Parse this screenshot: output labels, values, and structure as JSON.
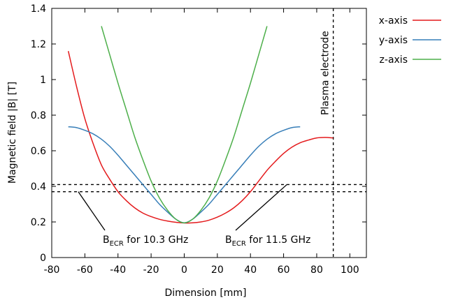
{
  "chart_data": {
    "type": "line",
    "xlabel": "Dimension [mm]",
    "ylabel": "Magnetic field |B| [T]",
    "xlim": [
      -80,
      110
    ],
    "ylim": [
      0,
      1.4
    ],
    "xticks": [
      "-80",
      "-60",
      "-40",
      "-20",
      "0",
      "20",
      "40",
      "60",
      "80",
      "100"
    ],
    "xtick_values": [
      -80,
      -60,
      -40,
      -20,
      0,
      20,
      40,
      60,
      80,
      100
    ],
    "yticks": [
      "0",
      "0.2",
      "0.4",
      "0.6",
      "0.8",
      "1",
      "1.2",
      "1.4"
    ],
    "ytick_values": [
      0,
      0.2,
      0.4,
      0.6,
      0.8,
      1.0,
      1.2,
      1.4
    ],
    "grid": false,
    "legend_position": "top-right outside",
    "series": [
      {
        "name": "x-axis",
        "color": "#e41a1c",
        "x": [
          -70,
          -65,
          -60,
          -55,
          -50,
          -45,
          -40,
          -35,
          -30,
          -25,
          -20,
          -15,
          -10,
          -5,
          0,
          5,
          10,
          15,
          20,
          25,
          30,
          35,
          40,
          45,
          50,
          55,
          60,
          65,
          70,
          75,
          80,
          85,
          90
        ],
        "y": [
          1.16,
          0.96,
          0.78,
          0.64,
          0.52,
          0.44,
          0.37,
          0.32,
          0.28,
          0.25,
          0.23,
          0.215,
          0.205,
          0.198,
          0.194,
          0.195,
          0.2,
          0.21,
          0.227,
          0.25,
          0.28,
          0.32,
          0.37,
          0.43,
          0.49,
          0.54,
          0.585,
          0.62,
          0.645,
          0.66,
          0.672,
          0.675,
          0.672
        ]
      },
      {
        "name": "y-axis",
        "color": "#377eb8",
        "x": [
          -70,
          -65,
          -60,
          -55,
          -50,
          -45,
          -40,
          -35,
          -30,
          -25,
          -20,
          -15,
          -10,
          -5,
          0,
          5,
          10,
          15,
          20,
          25,
          30,
          35,
          40,
          45,
          50,
          55,
          60,
          65,
          70
        ],
        "y": [
          0.735,
          0.73,
          0.715,
          0.695,
          0.665,
          0.625,
          0.575,
          0.52,
          0.465,
          0.41,
          0.355,
          0.3,
          0.255,
          0.215,
          0.195,
          0.215,
          0.255,
          0.3,
          0.355,
          0.41,
          0.465,
          0.52,
          0.575,
          0.625,
          0.665,
          0.695,
          0.715,
          0.73,
          0.735
        ]
      },
      {
        "name": "z-axis",
        "color": "#4daf4a",
        "x": [
          -50,
          -45,
          -40,
          -35,
          -30,
          -25,
          -20,
          -15,
          -10,
          -5,
          0,
          5,
          10,
          15,
          20,
          25,
          30,
          35,
          40,
          45,
          50
        ],
        "y": [
          1.3,
          1.14,
          0.98,
          0.83,
          0.68,
          0.55,
          0.43,
          0.335,
          0.265,
          0.215,
          0.195,
          0.215,
          0.265,
          0.335,
          0.43,
          0.55,
          0.68,
          0.83,
          0.98,
          1.14,
          1.3
        ]
      }
    ],
    "reference_lines": {
      "horizontal": [
        0.37,
        0.41
      ],
      "vertical": [
        90
      ]
    },
    "annotations": [
      {
        "id": "becr-103",
        "base": "B",
        "subscript": "ECR",
        "rest": " for 10.3 GHz",
        "target_x": -64,
        "target_y": 0.37
      },
      {
        "id": "becr-115",
        "base": "B",
        "subscript": "ECR",
        "rest": " for 11.5 GHz",
        "target_x": 62,
        "target_y": 0.41
      },
      {
        "id": "plasma-electrode",
        "text": "Plasma electrode"
      }
    ]
  }
}
